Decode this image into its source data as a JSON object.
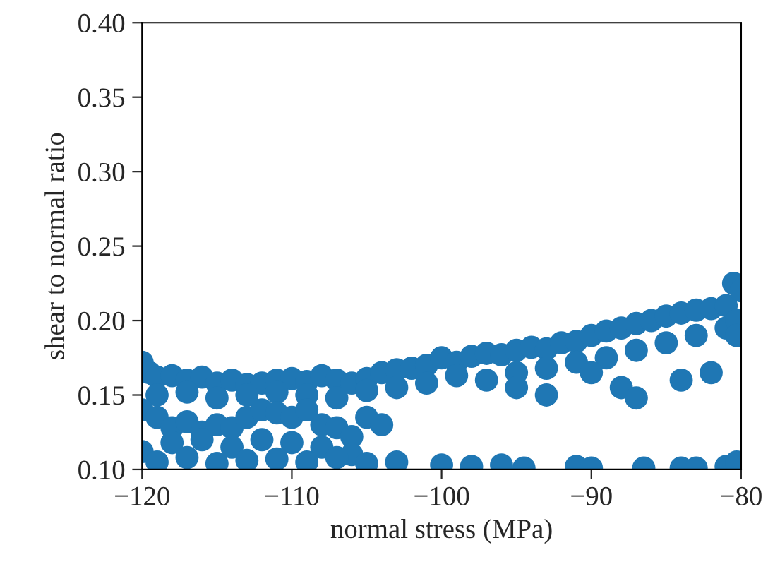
{
  "chart_data": {
    "type": "scatter",
    "xlabel": "normal stress (MPa)",
    "ylabel": "shear to normal ratio",
    "xlim": [
      -120,
      -80
    ],
    "ylim": [
      0.1,
      0.4
    ],
    "xticks": [
      {
        "value": -120,
        "label": "−120"
      },
      {
        "value": -110,
        "label": "−110"
      },
      {
        "value": -100,
        "label": "−100"
      },
      {
        "value": -90,
        "label": "−90"
      },
      {
        "value": -80,
        "label": "−80"
      }
    ],
    "yticks": [
      {
        "value": 0.1,
        "label": "0.10"
      },
      {
        "value": 0.15,
        "label": "0.15"
      },
      {
        "value": 0.2,
        "label": "0.20"
      },
      {
        "value": 0.25,
        "label": "0.25"
      },
      {
        "value": 0.3,
        "label": "0.30"
      },
      {
        "value": 0.35,
        "label": "0.35"
      },
      {
        "value": 0.4,
        "label": "0.40"
      }
    ],
    "grid": false,
    "marker": "circle",
    "series": [
      {
        "color": "#1f77b4",
        "x": [
          -120,
          -119.5,
          -119,
          -118,
          -117,
          -116,
          -115,
          -114,
          -113,
          -112,
          -111,
          -110,
          -109,
          -108,
          -107,
          -106,
          -105,
          -104,
          -103,
          -102,
          -101,
          -100,
          -99,
          -98,
          -97,
          -96,
          -95,
          -94,
          -93,
          -92,
          -91,
          -90,
          -89,
          -88,
          -87,
          -86,
          -85,
          -84,
          -83,
          -82,
          -81,
          -80.5,
          -80,
          -119,
          -117,
          -115,
          -113,
          -111,
          -109,
          -107,
          -105,
          -103,
          -101,
          -99,
          -97,
          -95,
          -93,
          -91,
          -89,
          -87,
          -85,
          -83,
          -81,
          -80.3,
          -95,
          -93,
          -90,
          -88,
          -87,
          -84,
          -82,
          -80.3,
          -120,
          -119,
          -118,
          -117,
          -116,
          -115,
          -114,
          -113,
          -112,
          -111,
          -110,
          -109,
          -108,
          -107,
          -106,
          -105,
          -104,
          -120,
          -118,
          -116,
          -114,
          -112,
          -110,
          -108,
          -106,
          -119,
          -117,
          -115,
          -113,
          -111,
          -109,
          -107,
          -105,
          -103,
          -100,
          -98,
          -96,
          -94.5,
          -91,
          -90,
          -86.5,
          -84,
          -83,
          -81,
          -80.3
        ],
        "values": [
          0.172,
          0.165,
          0.162,
          0.163,
          0.16,
          0.162,
          0.158,
          0.16,
          0.157,
          0.158,
          0.16,
          0.161,
          0.159,
          0.163,
          0.16,
          0.158,
          0.161,
          0.165,
          0.167,
          0.168,
          0.17,
          0.175,
          0.172,
          0.176,
          0.178,
          0.177,
          0.18,
          0.182,
          0.181,
          0.185,
          0.186,
          0.19,
          0.193,
          0.195,
          0.198,
          0.2,
          0.203,
          0.205,
          0.207,
          0.208,
          0.21,
          0.225,
          0.22,
          0.15,
          0.152,
          0.148,
          0.15,
          0.152,
          0.15,
          0.148,
          0.153,
          0.155,
          0.158,
          0.163,
          0.16,
          0.165,
          0.168,
          0.172,
          0.175,
          0.18,
          0.185,
          0.19,
          0.195,
          0.2,
          0.155,
          0.15,
          0.165,
          0.155,
          0.148,
          0.16,
          0.165,
          0.19,
          0.14,
          0.135,
          0.128,
          0.132,
          0.125,
          0.13,
          0.128,
          0.135,
          0.14,
          0.138,
          0.135,
          0.14,
          0.13,
          0.128,
          0.122,
          0.135,
          0.13,
          0.112,
          0.118,
          0.12,
          0.115,
          0.12,
          0.118,
          0.115,
          0.11,
          0.105,
          0.108,
          0.104,
          0.106,
          0.107,
          0.105,
          0.108,
          0.104,
          0.105,
          0.103,
          0.102,
          0.103,
          0.101,
          0.102,
          0.101,
          0.101,
          0.101,
          0.101,
          0.102,
          0.105
        ]
      }
    ]
  }
}
